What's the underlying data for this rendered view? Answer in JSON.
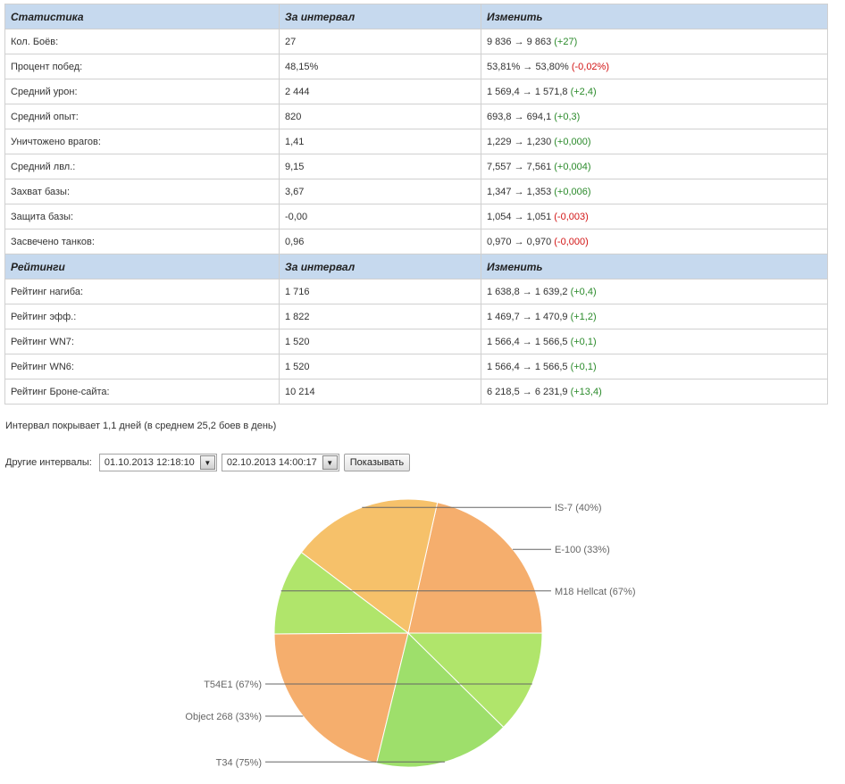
{
  "stats_header": {
    "col1": "Статистика",
    "col2": "За интервал",
    "col3": "Изменить"
  },
  "stats_rows": [
    {
      "label": "Кол. Боёв:",
      "value": "27",
      "from": "9 836",
      "to": "9 863",
      "delta": "(+27)",
      "sign": "pos"
    },
    {
      "label": "Процент побед:",
      "value": "48,15%",
      "from": "53,81%",
      "to": "53,80%",
      "delta": "(-0,02%)",
      "sign": "neg"
    },
    {
      "label": "Средний урон:",
      "value": "2 444",
      "from": "1 569,4",
      "to": "1 571,8",
      "delta": "(+2,4)",
      "sign": "pos"
    },
    {
      "label": "Средний опыт:",
      "value": "820",
      "from": "693,8",
      "to": "694,1",
      "delta": "(+0,3)",
      "sign": "pos"
    },
    {
      "label": "Уничтожено врагов:",
      "value": "1,41",
      "from": "1,229",
      "to": "1,230",
      "delta": "(+0,000)",
      "sign": "pos"
    },
    {
      "label": "Средний лвл.:",
      "value": "9,15",
      "from": "7,557",
      "to": "7,561",
      "delta": "(+0,004)",
      "sign": "pos"
    },
    {
      "label": "Захват базы:",
      "value": "3,67",
      "from": "1,347",
      "to": "1,353",
      "delta": "(+0,006)",
      "sign": "pos"
    },
    {
      "label": "Защита базы:",
      "value": "-0,00",
      "from": "1,054",
      "to": "1,051",
      "delta": "(-0,003)",
      "sign": "neg"
    },
    {
      "label": "Засвечено танков:",
      "value": "0,96",
      "from": "0,970",
      "to": "0,970",
      "delta": "(-0,000)",
      "sign": "neg"
    }
  ],
  "ratings_header": {
    "col1": "Рейтинги",
    "col2": "За интервал",
    "col3": "Изменить"
  },
  "ratings_rows": [
    {
      "label": "Рейтинг нагиба:",
      "value": "1 716",
      "from": "1 638,8",
      "to": "1 639,2",
      "delta": "(+0,4)",
      "sign": "pos"
    },
    {
      "label": "Рейтинг эфф.:",
      "value": "1 822",
      "from": "1 469,7",
      "to": "1 470,9",
      "delta": "(+1,2)",
      "sign": "pos"
    },
    {
      "label": "Рейтинг WN7:",
      "value": "1 520",
      "from": "1 566,4",
      "to": "1 566,5",
      "delta": "(+0,1)",
      "sign": "pos"
    },
    {
      "label": "Рейтинг WN6:",
      "value": "1 520",
      "from": "1 566,4",
      "to": "1 566,5",
      "delta": "(+0,1)",
      "sign": "pos"
    },
    {
      "label": "Рейтинг Броне-сайта:",
      "value": "10 214",
      "from": "6 218,5",
      "to": "6 231,9",
      "delta": "(+13,4)",
      "sign": "pos"
    }
  ],
  "arrow": "→",
  "interval_note": "Интервал покрывает 1,1 дней (в среднем 25,2 боев в день)",
  "other_intervals": {
    "label": "Другие интервалы:",
    "from_date": "01.10.2013 12:18:10",
    "to_date": "02.10.2013 14:00:17",
    "show_button": "Показывать",
    "dropdown_glyph": "▼"
  },
  "colors": {
    "header_bg": "#c6d9ee",
    "positive": "#2a8a2a",
    "negative": "#d21414"
  },
  "chart_data": {
    "type": "pie",
    "slices": [
      {
        "label": "E-100 (33%)",
        "share": 21.5,
        "color": "#f5ae6d",
        "side": "right"
      },
      {
        "label": "IS-7 (40%)",
        "share": 18.2,
        "color": "#f6c16a",
        "side": "right"
      },
      {
        "label": "M18 Hellcat (67%)",
        "share": 10.4,
        "color": "#b0e56b",
        "side": "right"
      },
      {
        "label": "Object 268 (33%)",
        "share": 21.1,
        "color": "#f5ae6d",
        "side": "left"
      },
      {
        "label": "T34 (75%)",
        "share": 16.4,
        "color": "#9edf6b",
        "side": "left"
      },
      {
        "label": "T54E1 (67%)",
        "share": 12.4,
        "color": "#b0e56b",
        "side": "left"
      }
    ]
  }
}
